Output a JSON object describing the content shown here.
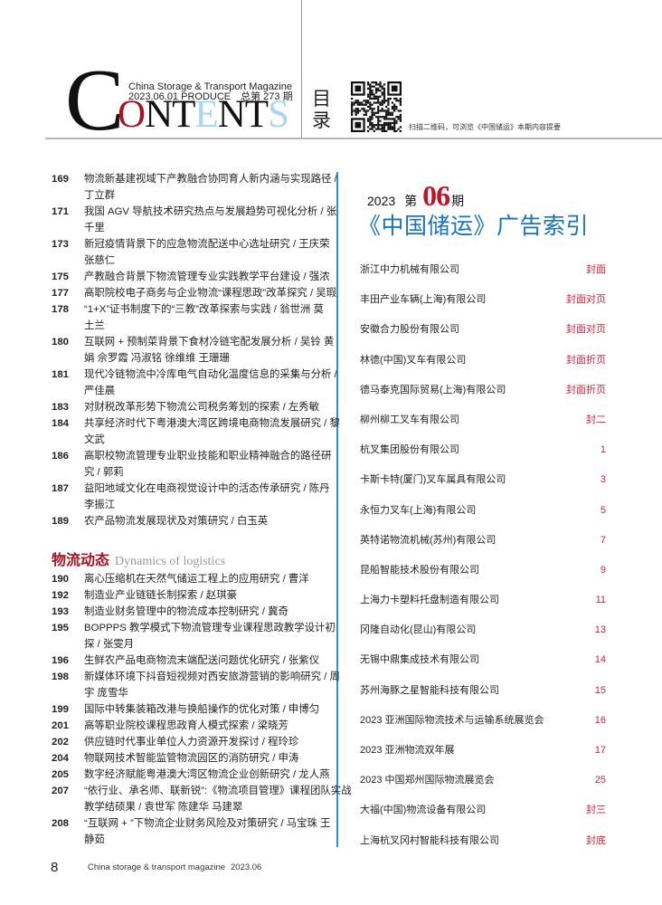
{
  "header": {
    "logo_big_letter": "C",
    "logo_rest": [
      "O",
      "N",
      "T",
      "E",
      "N",
      "T",
      "S"
    ],
    "magazine_name": "China Storage & Transport Magazine",
    "issue_line": "2023.06.01 PRODUCE　总第 273 期",
    "mulu": [
      "目",
      "录"
    ],
    "qr_caption": "扫描二维码，可浏览《中国储运》本期内容提要",
    "colors": {
      "red": "#a31523",
      "light_blue": "#a9d6f0",
      "black": "#111111"
    }
  },
  "contents": {
    "entries_a": [
      {
        "page": "169",
        "lines": [
          "物流新基建视域下产教融合协同育人新内涵与实现路径 /",
          "丁立群"
        ]
      },
      {
        "page": "171",
        "lines": [
          "我国 AGV 导航技术研究热点与发展趋势可视化分析 / 张",
          "千里"
        ]
      },
      {
        "page": "173",
        "lines": [
          "新冠疫情背景下的应急物流配送中心选址研究 / 王庆荣",
          "张慈仁"
        ]
      },
      {
        "page": "175",
        "lines": [
          "产教融合背景下物流管理专业实践教学平台建设 / 强浓"
        ]
      },
      {
        "page": "177",
        "lines": [
          "高职院校电子商务与企业物流“课程思政”改革探究 / 吴瑕"
        ]
      },
      {
        "page": "178",
        "lines": [
          "“1+X”证书制度下的“三教”改革探索与实践 / 翁世洲 莫",
          "土兰"
        ]
      },
      {
        "page": "180",
        "lines": [
          "互联网 + 预制菜背景下食材冷链宅配发展分析 / 吴铃 黄",
          "娟 佘罗霞 冯淑铭 徐维维 王珊珊"
        ]
      },
      {
        "page": "181",
        "lines": [
          "现代冷链物流中冷库电气自动化温度信息的采集与分析 /",
          "严佳晨"
        ]
      },
      {
        "page": "183",
        "lines": [
          "对财税改革形势下物流公司税务筹划的探索 / 左秀敏"
        ]
      },
      {
        "page": "184",
        "lines": [
          "共享经济时代下粤港澳大湾区跨境电商物流发展研究 / 黎",
          "文武"
        ]
      },
      {
        "page": "186",
        "lines": [
          "高职校物流管理专业职业技能和职业精神融合的路径研",
          "究 / 郭莉"
        ]
      },
      {
        "page": "187",
        "lines": [
          "益阳地域文化在电商视觉设计中的活态传承研究 / 陈丹",
          "李振江"
        ]
      },
      {
        "page": "189",
        "lines": [
          "农产品物流发展现状及对策研究 / 白玉英"
        ]
      }
    ],
    "section": {
      "title_cn": "物流动态",
      "title_en": "Dynamics of logistics"
    },
    "entries_b": [
      {
        "page": "190",
        "lines": [
          "离心压缩机在天然气储运工程上的应用研究 / 曹洋"
        ]
      },
      {
        "page": "192",
        "lines": [
          "制造业产业链链长制探索 / 赵琪豪"
        ]
      },
      {
        "page": "193",
        "lines": [
          "制造业财务管理中的物流成本控制研究 / 冀奇"
        ]
      },
      {
        "page": "195",
        "lines": [
          "BOPPPS 教学模式下物流管理专业课程思政教学设计初",
          "探 / 张雯月"
        ]
      },
      {
        "page": "196",
        "lines": [
          "生鲜农产品电商物流末端配送问题优化研究 / 张紫仪"
        ]
      },
      {
        "page": "198",
        "lines": [
          "新媒体环境下抖音短视频对西安旅游营销的影响研究 / 周",
          "宇 庞雪华"
        ]
      },
      {
        "page": "199",
        "lines": [
          "国际中转集装箱改港与换船操作的优化对策 / 申博匀"
        ]
      },
      {
        "page": "201",
        "lines": [
          "高等职业院校课程思政育人模式探索 / 梁晓芳"
        ]
      },
      {
        "page": "202",
        "lines": [
          "供应链时代事业单位人力资源开发探讨 / 程玲珍"
        ]
      },
      {
        "page": "204",
        "lines": [
          "物联网技术智能监管物流园区的消防研究 / 申涛"
        ]
      },
      {
        "page": "205",
        "lines": [
          "数字经济赋能粤港澳大湾区物流企业创新研究 / 龙人燕"
        ]
      },
      {
        "page": "207",
        "lines": [
          "“依行业、承名师、联新锐”:《物流项目管理》课程团队实战",
          "教学结硕果 / 袁世军 陈建华 马建翠"
        ]
      },
      {
        "page": "208",
        "lines": [
          "“互联网 + ”下物流企业财务风险及对策研究 / 马宝珠 王",
          "静茹"
        ]
      }
    ]
  },
  "ad_index": {
    "year": "2023",
    "di": "第",
    "issue_no": "06",
    "qi": "期",
    "title": "《中国储运》广告索引",
    "items": [
      {
        "name": "浙江中力机械有限公司",
        "page": "封面"
      },
      {
        "name": "丰田产业车辆(上海)有限公司",
        "page": "封面对页"
      },
      {
        "name": "安徽合力股份有限公司",
        "page": "封面对页"
      },
      {
        "name": "林德(中国)叉车有限公司",
        "page": "封面折页"
      },
      {
        "name": "德马泰克国际贸易(上海)有限公司",
        "page": "封面折页"
      },
      {
        "name": "柳州柳工叉车有限公司",
        "page": "封二"
      },
      {
        "name": "杭叉集团股份有限公司",
        "page": "1"
      },
      {
        "name": "卡斯卡特(厦门)叉车属具有限公司",
        "page": "3"
      },
      {
        "name": "永恒力叉车(上海)有限公司",
        "page": "5"
      },
      {
        "name": "英特诺物流机械(苏州)有限公司",
        "page": "7"
      },
      {
        "name": "昆船智能技术股份有限公司",
        "page": "9"
      },
      {
        "name": "上海力卡塑料托盘制造有限公司",
        "page": "11"
      },
      {
        "name": "冈隆自动化(昆山)有限公司",
        "page": "13"
      },
      {
        "name": "无锡中鼎集成技术有限公司",
        "page": "14"
      },
      {
        "name": "苏州海豚之星智能科技有限公司",
        "page": "15"
      },
      {
        "name": "2023 亚洲国际物流技术与运输系统展览会",
        "page": "16"
      },
      {
        "name": "2023 亚洲物流双年展",
        "page": "17"
      },
      {
        "name": "2023 中国郑州国际物流展览会",
        "page": "25"
      },
      {
        "name": "大福(中国)物流设备有限公司",
        "page": "封三"
      },
      {
        "name": "上海杭叉冈村智能科技有限公司",
        "page": "封底"
      }
    ],
    "colors": {
      "title_blue": "#1a74bd",
      "page_red": "#d2233f"
    }
  },
  "footer": {
    "page_number": "8",
    "magazine": "China storage & transport magazine",
    "date": "2023.06"
  }
}
